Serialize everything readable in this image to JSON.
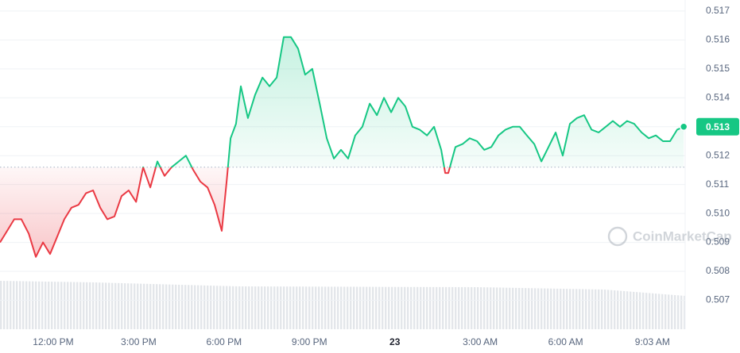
{
  "chart_data": {
    "type": "line",
    "watermark": "CoinMarketCap",
    "up_color": "#16c784",
    "down_color": "#ea3943",
    "baseline": 0.5116,
    "last_value_label": "0.513",
    "grid": true,
    "xlim": [
      10.13,
      34.2
    ],
    "xticks": [
      {
        "value": 12,
        "label": "12:00 PM"
      },
      {
        "value": 15,
        "label": "3:00 PM"
      },
      {
        "value": 18,
        "label": "6:00 PM"
      },
      {
        "value": 21,
        "label": "9:00 PM"
      },
      {
        "value": 24,
        "label": "23"
      },
      {
        "value": 27,
        "label": "3:00 AM"
      },
      {
        "value": 30,
        "label": "6:00 AM"
      },
      {
        "value": 33.05,
        "label": "9:03 AM"
      }
    ],
    "ylim": [
      0.5063,
      0.5173
    ],
    "yticks": [
      0.507,
      0.508,
      0.509,
      {
        "value": 0.51,
        "label": "0.510"
      },
      0.511,
      0.512,
      0.513,
      0.514,
      0.515,
      0.516,
      0.517
    ],
    "x": [
      10.13,
      10.38,
      10.63,
      10.88,
      11.14,
      11.39,
      11.64,
      11.89,
      12.14,
      12.39,
      12.64,
      12.89,
      13.15,
      13.4,
      13.65,
      13.9,
      14.15,
      14.4,
      14.65,
      14.91,
      15.16,
      15.41,
      15.66,
      15.91,
      16.16,
      16.41,
      16.66,
      16.92,
      17.17,
      17.42,
      17.67,
      17.92,
      18.09,
      18.23,
      18.42,
      18.59,
      18.84,
      19.09,
      19.35,
      19.6,
      19.85,
      20.1,
      20.35,
      20.6,
      20.85,
      21.1,
      21.36,
      21.61,
      21.86,
      22.11,
      22.36,
      22.61,
      22.86,
      23.12,
      23.37,
      23.62,
      23.87,
      24.12,
      24.37,
      24.62,
      24.87,
      25.13,
      25.38,
      25.63,
      25.77,
      25.88,
      26.13,
      26.38,
      26.63,
      26.89,
      27.14,
      27.39,
      27.64,
      27.89,
      28.14,
      28.39,
      28.64,
      28.9,
      29.15,
      29.4,
      29.65,
      29.9,
      30.15,
      30.4,
      30.65,
      30.91,
      31.16,
      31.41,
      31.66,
      31.91,
      32.16,
      32.41,
      32.67,
      32.92,
      33.17,
      33.42,
      33.67,
      33.92,
      34.15
    ],
    "values": [
      0.509,
      0.5094,
      0.5098,
      0.5098,
      0.5093,
      0.5085,
      0.509,
      0.5086,
      0.5092,
      0.5098,
      0.5102,
      0.5103,
      0.5107,
      0.5108,
      0.5102,
      0.5098,
      0.5099,
      0.5106,
      0.5108,
      0.5104,
      0.5116,
      0.5109,
      0.5118,
      0.5113,
      0.5116,
      0.5118,
      0.512,
      0.5115,
      0.5111,
      0.5109,
      0.5103,
      0.5094,
      0.5111,
      0.5126,
      0.5131,
      0.5144,
      0.5133,
      0.5141,
      0.5147,
      0.5144,
      0.5147,
      0.5161,
      0.5161,
      0.5157,
      0.5148,
      0.515,
      0.5138,
      0.5126,
      0.5119,
      0.5122,
      0.5119,
      0.5127,
      0.513,
      0.5138,
      0.5134,
      0.514,
      0.5135,
      0.514,
      0.5137,
      0.513,
      0.5129,
      0.5127,
      0.513,
      0.5122,
      0.5114,
      0.5114,
      0.5123,
      0.5124,
      0.5126,
      0.5125,
      0.5122,
      0.5123,
      0.5127,
      0.5129,
      0.513,
      0.513,
      0.5127,
      0.5124,
      0.5118,
      0.5123,
      0.5128,
      0.512,
      0.5131,
      0.5133,
      0.5134,
      0.5129,
      0.5128,
      0.513,
      0.5132,
      0.513,
      0.5132,
      0.5131,
      0.5128,
      0.5126,
      0.5127,
      0.5125,
      0.5125,
      0.5129,
      0.513
    ]
  }
}
